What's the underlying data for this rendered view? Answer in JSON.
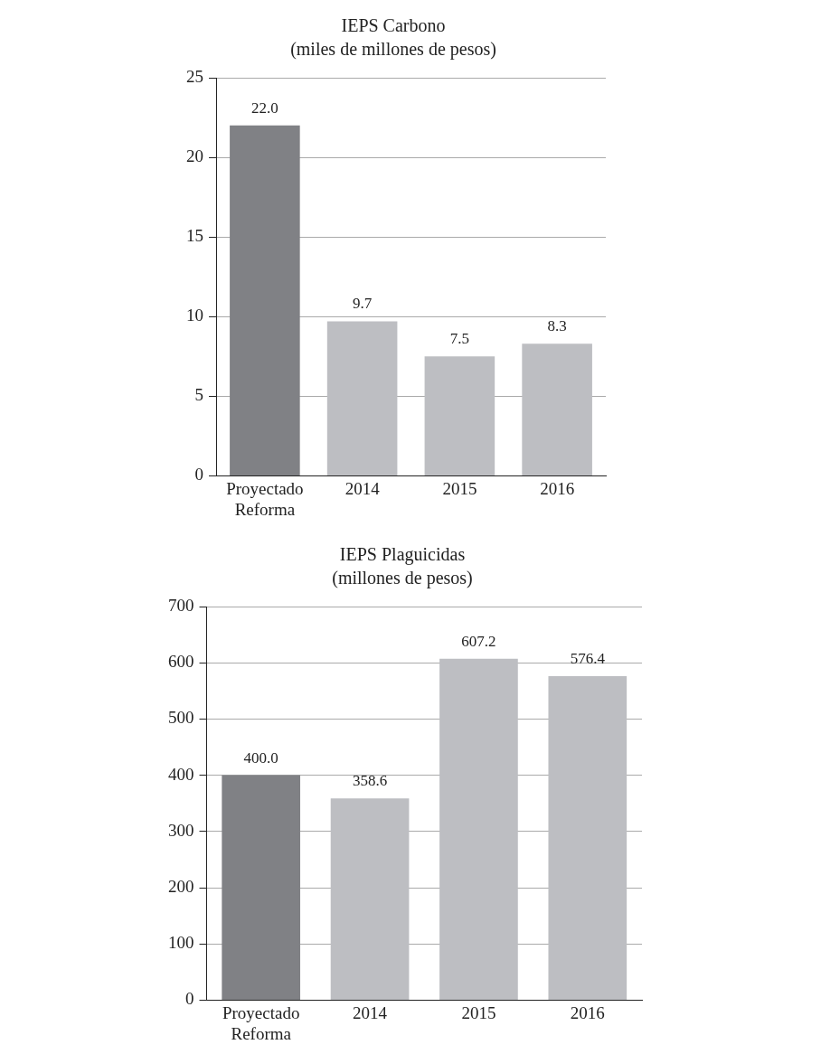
{
  "chart_data": [
    {
      "type": "bar",
      "title": "IEPS Carbono",
      "subtitle": "(miles de millones de pesos)",
      "categories": [
        "Proyectado Reforma",
        "2014",
        "2015",
        "2016"
      ],
      "values": [
        22.0,
        9.7,
        7.5,
        8.3
      ],
      "colors": [
        "#808185",
        "#bdbec2",
        "#bdbec2",
        "#bdbec2"
      ],
      "ylim": [
        0,
        25
      ],
      "yticks": [
        0,
        5,
        10,
        15,
        20,
        25
      ],
      "grid": "y",
      "legend": false,
      "value_labels": [
        "22.0",
        "9.7",
        "7.5",
        "8.3"
      ]
    },
    {
      "type": "bar",
      "title": "IEPS Plaguicidas",
      "subtitle": "(millones de pesos)",
      "categories": [
        "Proyectado Reforma",
        "2014",
        "2015",
        "2016"
      ],
      "values": [
        400.0,
        358.6,
        607.2,
        576.4
      ],
      "colors": [
        "#808185",
        "#bdbec2",
        "#bdbec2",
        "#bdbec2"
      ],
      "ylim": [
        0,
        700
      ],
      "yticks": [
        0,
        100,
        200,
        300,
        400,
        500,
        600,
        700
      ],
      "grid": "y",
      "legend": false,
      "value_labels": [
        "400.0",
        "358.6",
        "607.2",
        "576.4"
      ]
    }
  ]
}
